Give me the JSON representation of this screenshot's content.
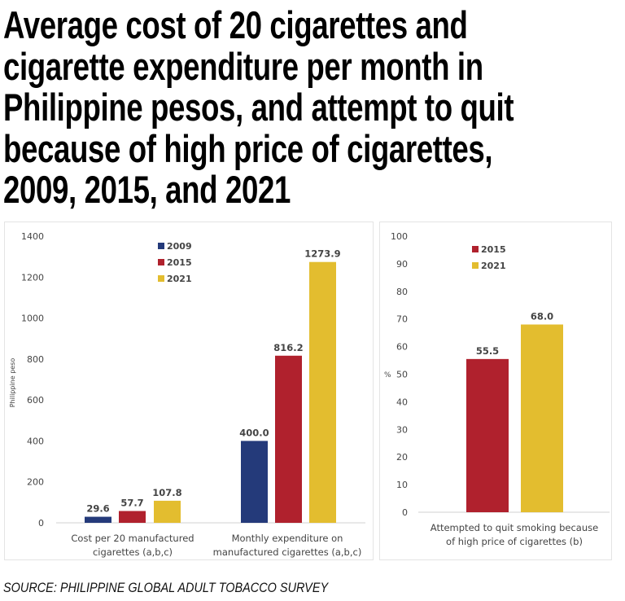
{
  "title_lines": [
    "Average cost of 20 cigarettes and",
    "cigarette expenditure per month in",
    "Philippine pesos, and attempt to quit",
    "because of high price of cigarettes,",
    "2009, 2015, and 2021"
  ],
  "source": "SOURCE: PHILIPPINE GLOBAL ADULT TOBACCO SURVEY",
  "colors": {
    "2009": "#243a7a",
    "2015": "#b0212d",
    "2021": "#e3bd2f"
  },
  "chart_data": [
    {
      "type": "bar",
      "ylabel": "Philippine peso",
      "ylim": [
        0,
        1400
      ],
      "yticks": [
        0,
        200,
        400,
        600,
        800,
        1000,
        1200,
        1400
      ],
      "legend": [
        "2009",
        "2015",
        "2021"
      ],
      "legend_position": "top-center",
      "categories": [
        [
          "Cost per 20 manufactured",
          "cigarettes (a,b,c)"
        ],
        [
          "Monthly expenditure on",
          "manufactured cigarettes (a,b,c)"
        ]
      ],
      "series": [
        {
          "name": "2009",
          "values": [
            29.6,
            400.0
          ],
          "labels": [
            "29.6",
            "400.0"
          ]
        },
        {
          "name": "2015",
          "values": [
            57.7,
            816.2
          ],
          "labels": [
            "57.7",
            "816.2"
          ]
        },
        {
          "name": "2021",
          "values": [
            107.8,
            1273.9
          ],
          "labels": [
            "107.8",
            "1273.9"
          ]
        }
      ]
    },
    {
      "type": "bar",
      "ylabel": "%",
      "ylim": [
        0,
        100
      ],
      "yticks": [
        0,
        10,
        20,
        30,
        40,
        50,
        60,
        70,
        80,
        90,
        100
      ],
      "legend": [
        "2015",
        "2021"
      ],
      "legend_position": "top-center",
      "categories": [
        [
          "Attempted to quit smoking because",
          "of high price of cigarettes (b)"
        ]
      ],
      "series": [
        {
          "name": "2015",
          "values": [
            55.5
          ],
          "labels": [
            "55.5"
          ]
        },
        {
          "name": "2021",
          "values": [
            68.0
          ],
          "labels": [
            "68.0"
          ]
        }
      ]
    }
  ]
}
